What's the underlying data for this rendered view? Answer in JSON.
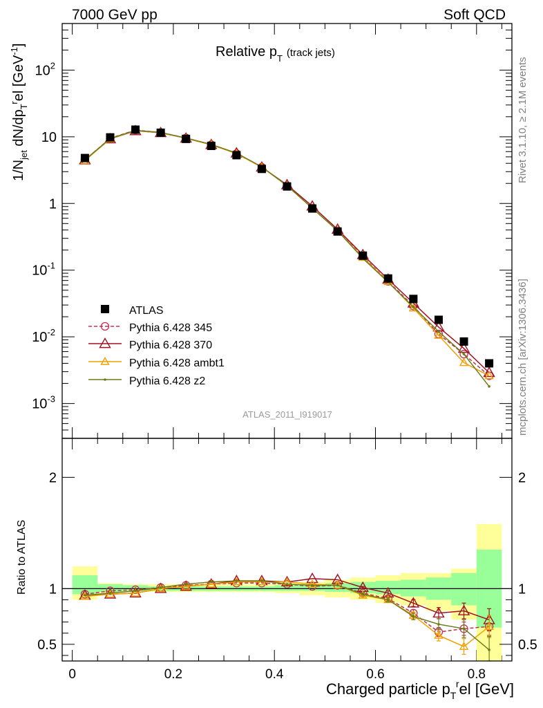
{
  "header": {
    "left": "7000 GeV pp",
    "right": "Soft QCD"
  },
  "side_text": {
    "top": "Rivet 3.1.10, ≥ 2.1M events",
    "bottom": "mcplots.cern.ch [arXiv:1306.3436]"
  },
  "chart_data": [
    {
      "type": "line",
      "panel": "main",
      "title_main": "Relative p",
      "title_sub": "T",
      "title_note": "(track jets)",
      "watermark": "ATLAS_2011_I919017",
      "ylabel": "1/N_jet dN/dp_T^rel [GeV^-1]",
      "yscale": "log",
      "ylim": [
        0.0003,
        500
      ],
      "xlim": [
        -0.02,
        0.87
      ],
      "x": [
        0.025,
        0.075,
        0.125,
        0.175,
        0.225,
        0.275,
        0.325,
        0.375,
        0.425,
        0.475,
        0.525,
        0.575,
        0.625,
        0.675,
        0.725,
        0.775,
        0.825
      ],
      "x_ticks": [
        "0",
        "0.2",
        "0.4",
        "0.6",
        "0.8"
      ],
      "y_ticks": [
        "10^-3",
        "10^-2",
        "10^-1",
        "1",
        "10",
        "10^2"
      ],
      "legend": {
        "position": "left-lower"
      },
      "series": [
        {
          "name": "ATLAS",
          "color": "#000000",
          "marker": "square",
          "values": [
            4.8,
            9.8,
            12.8,
            11.5,
            9.3,
            7.3,
            5.3,
            3.3,
            1.8,
            0.84,
            0.38,
            0.165,
            0.075,
            0.037,
            0.018,
            0.0085,
            0.004
          ]
        },
        {
          "name": "Pythia 6.428 345",
          "color": "#c03050",
          "marker": "open-circle",
          "dash": "dashed",
          "values": [
            4.5,
            9.5,
            12.6,
            11.6,
            9.6,
            7.6,
            5.6,
            3.5,
            1.85,
            0.85,
            0.39,
            0.16,
            0.068,
            0.029,
            0.011,
            0.0055,
            0.0026
          ]
        },
        {
          "name": "Pythia 6.428 370",
          "color": "#a01020",
          "marker": "open-triangle",
          "values": [
            4.5,
            9.3,
            12.3,
            11.5,
            9.5,
            7.6,
            5.7,
            3.5,
            1.9,
            0.91,
            0.41,
            0.17,
            0.073,
            0.032,
            0.014,
            0.0067,
            0.0029
          ]
        },
        {
          "name": "Pythia 6.428 ambt1",
          "color": "#f0a000",
          "marker": "open-triangle",
          "values": [
            4.4,
            9.3,
            12.4,
            11.5,
            9.5,
            7.6,
            5.6,
            3.5,
            1.85,
            0.85,
            0.39,
            0.155,
            0.067,
            0.027,
            0.0105,
            0.0041,
            0.0026
          ]
        },
        {
          "name": "Pythia 6.428 z2",
          "color": "#6b7d1a",
          "marker": "dot",
          "values": [
            4.5,
            9.4,
            12.5,
            11.6,
            9.6,
            7.7,
            5.7,
            3.55,
            1.85,
            0.85,
            0.39,
            0.15,
            0.066,
            0.028,
            0.012,
            0.0055,
            0.0018
          ]
        }
      ]
    },
    {
      "type": "line",
      "panel": "ratio",
      "ylabel": "Ratio to ATLAS",
      "xlabel": "Charged particle p_T^rel [GeV]",
      "ylim": [
        0.35,
        2.35
      ],
      "y_ticks": [
        "0.5",
        "1",
        "2"
      ],
      "x": [
        0.025,
        0.075,
        0.125,
        0.175,
        0.225,
        0.275,
        0.325,
        0.375,
        0.425,
        0.475,
        0.525,
        0.575,
        0.625,
        0.675,
        0.725,
        0.775,
        0.825
      ],
      "bands": {
        "bin_edges": [
          0.0,
          0.05,
          0.1,
          0.15,
          0.2,
          0.25,
          0.3,
          0.35,
          0.4,
          0.45,
          0.5,
          0.55,
          0.6,
          0.65,
          0.7,
          0.75,
          0.8,
          0.85
        ],
        "stat": {
          "color": "#99ff99",
          "lo": [
            0.95,
            0.97,
            0.98,
            0.98,
            0.98,
            0.98,
            0.98,
            0.98,
            0.98,
            0.98,
            0.97,
            0.96,
            0.95,
            0.93,
            0.9,
            0.85,
            0.65
          ],
          "hi": [
            1.12,
            1.04,
            1.03,
            1.02,
            1.02,
            1.02,
            1.02,
            1.02,
            1.03,
            1.04,
            1.05,
            1.06,
            1.07,
            1.08,
            1.1,
            1.14,
            1.35
          ]
        },
        "syst": {
          "color": "#ffff99",
          "lo": [
            0.9,
            0.96,
            0.97,
            0.97,
            0.97,
            0.97,
            0.97,
            0.97,
            0.96,
            0.94,
            0.92,
            0.9,
            0.87,
            0.85,
            0.8,
            0.72,
            0.35
          ],
          "hi": [
            1.2,
            1.05,
            1.04,
            1.04,
            1.04,
            1.04,
            1.04,
            1.04,
            1.05,
            1.06,
            1.08,
            1.1,
            1.12,
            1.14,
            1.14,
            1.18,
            1.58
          ]
        }
      },
      "series": [
        {
          "name": "Pythia 6.428 345",
          "color": "#c03050",
          "marker": "open-circle",
          "dash": "dashed",
          "values": [
            0.95,
            0.98,
            0.99,
            1.01,
            1.03,
            1.04,
            1.05,
            1.05,
            1.04,
            1.02,
            1.03,
            0.96,
            0.91,
            0.78,
            0.61,
            0.64,
            0.66
          ],
          "err": [
            0,
            0,
            0,
            0,
            0,
            0,
            0,
            0,
            0,
            0,
            0,
            0.01,
            0.02,
            0.03,
            0.04,
            0.06,
            0.08
          ]
        },
        {
          "name": "Pythia 6.428 370",
          "color": "#a01020",
          "marker": "open-triangle",
          "values": [
            0.94,
            0.95,
            0.96,
            1.0,
            1.02,
            1.04,
            1.07,
            1.07,
            1.06,
            1.09,
            1.08,
            1.01,
            0.96,
            0.87,
            0.78,
            0.8,
            0.72
          ],
          "err": [
            0,
            0,
            0,
            0,
            0,
            0,
            0,
            0,
            0,
            0,
            0,
            0.01,
            0.02,
            0.03,
            0.05,
            0.07,
            0.1
          ]
        },
        {
          "name": "Pythia 6.428 ambt1",
          "color": "#f0a000",
          "marker": "open-triangle",
          "values": [
            0.93,
            0.95,
            0.96,
            1.0,
            1.02,
            1.04,
            1.06,
            1.06,
            1.06,
            1.04,
            1.03,
            0.94,
            0.9,
            0.76,
            0.58,
            0.48,
            0.66
          ],
          "err": [
            0,
            0,
            0,
            0,
            0,
            0,
            0,
            0,
            0,
            0,
            0,
            0.01,
            0.02,
            0.03,
            0.05,
            0.07,
            0.1
          ]
        },
        {
          "name": "Pythia 6.428 z2",
          "color": "#6b7d1a",
          "marker": "dot",
          "values": [
            0.94,
            0.96,
            0.98,
            1.01,
            1.04,
            1.06,
            1.07,
            1.07,
            1.04,
            1.03,
            1.03,
            0.95,
            0.9,
            0.75,
            0.68,
            0.64,
            0.45
          ],
          "err": [
            0,
            0,
            0,
            0,
            0,
            0,
            0,
            0,
            0,
            0,
            0,
            0.01,
            0.02,
            0.03,
            0.05,
            0.08,
            0.12
          ]
        }
      ]
    }
  ]
}
